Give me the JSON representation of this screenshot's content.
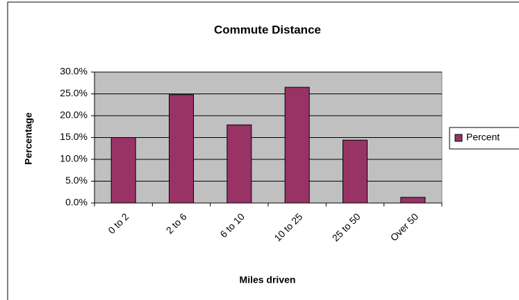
{
  "chart_data": {
    "type": "bar",
    "title": "Commute Distance",
    "x_label": "Miles driven",
    "y_label": "Percentage",
    "categories": [
      "0 to 2",
      "2 to 6",
      "6 to 10",
      "10 to 25",
      "25 to 50",
      "Over 50"
    ],
    "series": [
      {
        "name": "Percent",
        "color": "#993366",
        "values": [
          15.0,
          24.8,
          17.9,
          26.5,
          14.4,
          1.3
        ]
      }
    ],
    "ylim": [
      0,
      30
    ],
    "yticks": [
      {
        "value": 0,
        "label": "0.0%"
      },
      {
        "value": 5,
        "label": "5.0%"
      },
      {
        "value": 10,
        "label": "10.0%"
      },
      {
        "value": 15,
        "label": "15.0%"
      },
      {
        "value": 20,
        "label": "20.0%"
      },
      {
        "value": 25,
        "label": "25.0%"
      },
      {
        "value": 30,
        "label": "30.0%"
      }
    ],
    "grid": true,
    "legend": "right"
  }
}
